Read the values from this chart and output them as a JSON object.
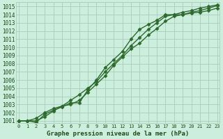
{
  "title": "Graphe pression niveau de la mer (hPa)",
  "x_labels": [
    "0",
    "1",
    "2",
    "3",
    "4",
    "5",
    "6",
    "7",
    "8",
    "9",
    "10",
    "11",
    "12",
    "13",
    "14",
    "15",
    "16",
    "17",
    "18",
    "19",
    "20",
    "21",
    "22",
    "23"
  ],
  "ylim_min": 1001.0,
  "ylim_max": 1015.5,
  "xlim_min": -0.3,
  "xlim_max": 23.3,
  "yticks": [
    1001,
    1002,
    1003,
    1004,
    1005,
    1006,
    1007,
    1008,
    1009,
    1010,
    1011,
    1012,
    1013,
    1014,
    1015
  ],
  "line1_x": [
    0,
    1,
    2,
    3,
    4,
    5,
    6,
    7,
    8,
    9,
    10,
    11,
    12,
    13,
    14,
    15,
    16,
    17,
    18,
    19,
    20,
    21,
    22,
    23
  ],
  "line1_y": [
    1001.0,
    1001.0,
    1001.3,
    1002.0,
    1002.5,
    1002.8,
    1003.5,
    1004.2,
    1005.0,
    1005.8,
    1007.0,
    1008.0,
    1009.0,
    1010.2,
    1011.2,
    1012.2,
    1013.0,
    1013.8,
    1014.0,
    1014.3,
    1014.5,
    1014.8,
    1015.0,
    1015.2
  ],
  "line2_x": [
    0,
    1,
    2,
    3,
    4,
    5,
    6,
    7,
    8,
    9,
    10,
    11,
    12,
    13,
    14,
    15,
    16,
    17,
    18,
    19,
    20,
    21,
    22,
    23
  ],
  "line2_y": [
    1001.0,
    1001.0,
    1001.0,
    1001.5,
    1002.2,
    1002.8,
    1003.0,
    1003.5,
    1004.5,
    1005.5,
    1006.5,
    1007.8,
    1008.8,
    1009.8,
    1010.5,
    1011.5,
    1012.3,
    1013.2,
    1013.8,
    1014.0,
    1014.3,
    1014.5,
    1014.8,
    1015.1
  ],
  "line3_x": [
    0,
    1,
    2,
    3,
    4,
    5,
    6,
    7,
    8,
    9,
    10,
    11,
    12,
    13,
    14,
    15,
    16,
    17,
    18,
    19,
    20,
    21,
    22,
    23
  ],
  "line3_y": [
    1001.0,
    1001.0,
    1000.8,
    1001.8,
    1002.3,
    1002.7,
    1003.2,
    1003.2,
    1004.8,
    1006.0,
    1007.5,
    1008.5,
    1009.5,
    1011.0,
    1012.2,
    1012.8,
    1013.3,
    1014.0,
    1014.0,
    1014.0,
    1014.2,
    1014.3,
    1014.5,
    1014.8
  ],
  "line_color": "#2d6a2d",
  "bg_color": "#cceedd",
  "grid_color": "#aaccbb",
  "font_color": "#1a4d1a",
  "marker": "D",
  "marker_size": 2.5,
  "line_width": 1.0
}
